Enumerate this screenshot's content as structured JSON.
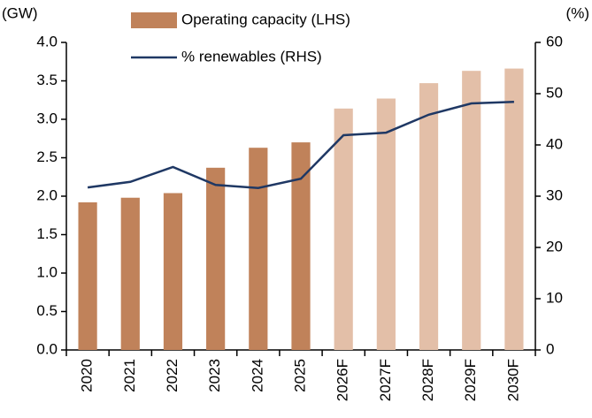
{
  "chart_data": {
    "type": "bar_line",
    "y_label": "(GW)",
    "y2_label": "(%)",
    "categories": [
      "2020",
      "2021",
      "2022",
      "2023",
      "2024",
      "2025",
      "2026F",
      "2027F",
      "2028F",
      "2029F",
      "2030F"
    ],
    "series": [
      {
        "name": "Operating capacity (LHS)",
        "color": "#c0825a",
        "colors": [
          "#c0825a",
          "#c0825a",
          "#c0825a",
          "#c0825a",
          "#c0825a",
          "#c0825a",
          "#e3bfa8",
          "#e3bfa8",
          "#e3bfa8",
          "#e3bfa8",
          "#e3bfa8"
        ],
        "values": [
          1.92,
          1.98,
          2.04,
          2.37,
          2.63,
          2.7,
          3.14,
          3.27,
          3.47,
          3.63,
          3.66
        ]
      },
      {
        "name": "% renewables (RHS)",
        "color": "#1f3864",
        "axis": "y2",
        "values": [
          31.7,
          32.8,
          35.7,
          32.2,
          31.6,
          33.4,
          41.9,
          42.4,
          45.9,
          48.1,
          48.4
        ]
      }
    ],
    "ylim": [
      0,
      4
    ],
    "yticks": [
      {
        "value": 0,
        "label": "0.0"
      },
      0.5,
      {
        "value": 1,
        "label": "1.0"
      },
      1.5,
      {
        "value": 2,
        "label": "2.0"
      },
      2.5,
      {
        "value": 3,
        "label": "3.0"
      },
      3.5,
      {
        "value": 4,
        "label": "4.0"
      }
    ],
    "y2lim": [
      0,
      60
    ],
    "y2ticks": [
      0,
      10,
      20,
      30,
      40,
      50,
      60
    ]
  }
}
